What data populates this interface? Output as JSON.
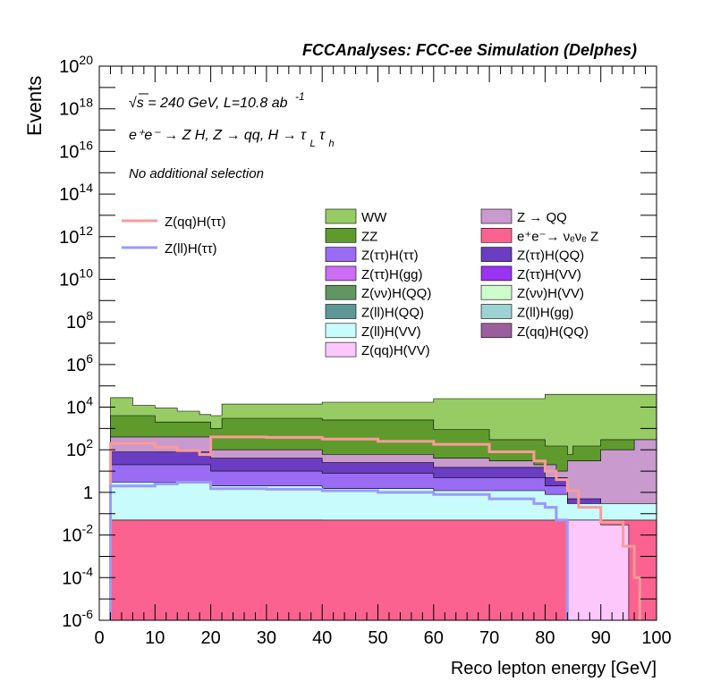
{
  "header": {
    "title": "FCCAnalyses: FCC-ee Simulation (Delphes)"
  },
  "annotations": {
    "energy_lumi": "√s = 240 GeV, L=10.8 ab",
    "energy_lumi_exp": "-1",
    "process": "e⁺e⁻ → Z H, Z → qq, H → τ",
    "process_sub1": "L",
    "process_tau2": "τ",
    "process_sub2": "h",
    "selection": "No additional selection"
  },
  "chart_data": {
    "type": "area",
    "title": "",
    "xlabel": "Reco lepton energy [GeV]",
    "ylabel": "Events",
    "xlim": [
      0,
      100
    ],
    "ylim": [
      1e-06,
      1e+20
    ],
    "log_y": true,
    "x_ticks": [
      "0",
      "10",
      "20",
      "30",
      "40",
      "50",
      "60",
      "70",
      "80",
      "90",
      "100"
    ],
    "y_ticks": [
      {
        "value": 1e-06,
        "base": "10",
        "exp": "-6"
      },
      {
        "value": 0.0001,
        "base": "10",
        "exp": "-4"
      },
      {
        "value": 0.01,
        "base": "10",
        "exp": "-2"
      },
      {
        "value": 1,
        "base": "1",
        "exp": ""
      },
      {
        "value": 100.0,
        "base": "10",
        "exp": "2"
      },
      {
        "value": 10000.0,
        "base": "10",
        "exp": "4"
      },
      {
        "value": 1000000.0,
        "base": "10",
        "exp": "6"
      },
      {
        "value": 100000000.0,
        "base": "10",
        "exp": "8"
      },
      {
        "value": 10000000000.0,
        "base": "10",
        "exp": "10"
      },
      {
        "value": 1000000000000.0,
        "base": "10",
        "exp": "12"
      },
      {
        "value": 100000000000000.0,
        "base": "10",
        "exp": "14"
      },
      {
        "value": 1e+16,
        "base": "10",
        "exp": "16"
      },
      {
        "value": 1e+18,
        "base": "10",
        "exp": "18"
      },
      {
        "value": 1e+20,
        "base": "10",
        "exp": "20"
      }
    ],
    "grid": false,
    "legend_placement": "top-right",
    "stack_totals": [
      {
        "x": 2,
        "y": 28000
      },
      {
        "x": 6,
        "y": 12000
      },
      {
        "x": 10,
        "y": 9000
      },
      {
        "x": 14,
        "y": 6500
      },
      {
        "x": 18,
        "y": 4500
      },
      {
        "x": 20,
        "y": 4000
      },
      {
        "x": 22,
        "y": 14000
      },
      {
        "x": 30,
        "y": 15000
      },
      {
        "x": 40,
        "y": 17000
      },
      {
        "x": 50,
        "y": 20000
      },
      {
        "x": 60,
        "y": 25000
      },
      {
        "x": 70,
        "y": 30000
      },
      {
        "x": 80,
        "y": 40000
      },
      {
        "x": 90,
        "y": 50000
      },
      {
        "x": 100,
        "y": 60000
      }
    ],
    "layers": [
      {
        "name": "WW",
        "color": "#97cc64",
        "points": [
          {
            "x": 2,
            "y": 28000
          },
          {
            "x": 6,
            "y": 12000
          },
          {
            "x": 10,
            "y": 9000
          },
          {
            "x": 14,
            "y": 6500
          },
          {
            "x": 18,
            "y": 4500
          },
          {
            "x": 20,
            "y": 4000
          },
          {
            "x": 22,
            "y": 14000
          },
          {
            "x": 40,
            "y": 17000
          },
          {
            "x": 60,
            "y": 25000
          },
          {
            "x": 80,
            "y": 40000
          },
          {
            "x": 100,
            "y": 60000
          }
        ]
      },
      {
        "name": "ZZ",
        "color": "#5f9a2d",
        "points": [
          {
            "x": 2,
            "y": 4000
          },
          {
            "x": 10,
            "y": 2000
          },
          {
            "x": 20,
            "y": 1000
          },
          {
            "x": 22,
            "y": 3000
          },
          {
            "x": 40,
            "y": 2500
          },
          {
            "x": 60,
            "y": 900
          },
          {
            "x": 70,
            "y": 300
          },
          {
            "x": 80,
            "y": 150
          },
          {
            "x": 84,
            "y": 60
          },
          {
            "x": 85,
            "y": 150
          },
          {
            "x": 90,
            "y": 300
          },
          {
            "x": 100,
            "y": 800
          }
        ]
      },
      {
        "name": "Z → QQ",
        "color": "#c89acd",
        "points": [
          {
            "x": 2,
            "y": 400
          },
          {
            "x": 20,
            "y": 100
          },
          {
            "x": 40,
            "y": 60
          },
          {
            "x": 60,
            "y": 40
          },
          {
            "x": 70,
            "y": 30
          },
          {
            "x": 78,
            "y": 20
          },
          {
            "x": 82,
            "y": 10
          },
          {
            "x": 84,
            "y": 30
          },
          {
            "x": 90,
            "y": 100
          },
          {
            "x": 96,
            "y": 300
          },
          {
            "x": 100,
            "y": 800
          }
        ]
      },
      {
        "name": "Z(ττ)H(QQ)",
        "color": "#6a3dc2",
        "points": [
          {
            "x": 2,
            "y": 80
          },
          {
            "x": 20,
            "y": 40
          },
          {
            "x": 40,
            "y": 25
          },
          {
            "x": 60,
            "y": 15
          },
          {
            "x": 80,
            "y": 5
          },
          {
            "x": 84,
            "y": 0.5
          },
          {
            "x": 90,
            "y": 0.01
          },
          {
            "x": 100,
            "y": 1e-06
          }
        ]
      },
      {
        "name": "Z(ττ)H(ττ)",
        "color": "#9a6cf4",
        "points": [
          {
            "x": 2,
            "y": 20
          },
          {
            "x": 20,
            "y": 10
          },
          {
            "x": 40,
            "y": 8
          },
          {
            "x": 60,
            "y": 5
          },
          {
            "x": 80,
            "y": 2
          },
          {
            "x": 84,
            "y": 0.1
          },
          {
            "x": 100,
            "y": 1e-06
          }
        ]
      },
      {
        "name": "Z(ll)H(gg)",
        "color": "#9dd2d2",
        "points": [
          {
            "x": 2,
            "y": 0.8
          },
          {
            "x": 20,
            "y": 0.5
          },
          {
            "x": 40,
            "y": 0.4
          },
          {
            "x": 60,
            "y": 0.3
          },
          {
            "x": 80,
            "y": 0.15
          },
          {
            "x": 84,
            "y": 0.05
          },
          {
            "x": 100,
            "y": 1e-06
          }
        ]
      },
      {
        "name": "Z(ll)H(VV)",
        "color": "#c8fcfc",
        "points": [
          {
            "x": 2,
            "y": 3
          },
          {
            "x": 20,
            "y": 2
          },
          {
            "x": 40,
            "y": 1.5
          },
          {
            "x": 60,
            "y": 1.2
          },
          {
            "x": 80,
            "y": 0.8
          },
          {
            "x": 84,
            "y": 0.3
          },
          {
            "x": 100,
            "y": 1e-06
          }
        ]
      },
      {
        "name": "Z(νν)H(QQ)",
        "color": "#619561",
        "points": [
          {
            "x": 2,
            "y": 0.05
          },
          {
            "x": 20,
            "y": 0.05
          },
          {
            "x": 40,
            "y": 0.01
          },
          {
            "x": 60,
            "y": 0.001
          },
          {
            "x": 100,
            "y": 1e-06
          }
        ]
      },
      {
        "name": "e⁺e⁻→ νₑνₑ Z",
        "color": "#fc628f",
        "points": [
          {
            "x": 2,
            "y": 0.05
          },
          {
            "x": 6,
            "y": 0.05
          },
          {
            "x": 20,
            "y": 0.05
          },
          {
            "x": 26,
            "y": 0.05
          },
          {
            "x": 100,
            "y": 1e-06
          }
        ]
      },
      {
        "name": "Z(qq)H(VV)",
        "color": "#fcc8fc",
        "points": [
          {
            "x": 84,
            "y": 0.05
          },
          {
            "x": 90,
            "y": 0.03
          },
          {
            "x": 95,
            "y": 0.01
          }
        ]
      }
    ],
    "series": [
      {
        "name": "Z(qq)H(ττ)",
        "color": "#fc9a9a",
        "points": [
          {
            "x": 2,
            "y": 1
          },
          {
            "x": 2,
            "y": 200
          },
          {
            "x": 6,
            "y": 200
          },
          {
            "x": 10,
            "y": 130
          },
          {
            "x": 14,
            "y": 90
          },
          {
            "x": 18,
            "y": 60
          },
          {
            "x": 20,
            "y": 50
          },
          {
            "x": 20,
            "y": 400
          },
          {
            "x": 30,
            "y": 380
          },
          {
            "x": 40,
            "y": 320
          },
          {
            "x": 50,
            "y": 250
          },
          {
            "x": 60,
            "y": 180
          },
          {
            "x": 70,
            "y": 80
          },
          {
            "x": 78,
            "y": 30
          },
          {
            "x": 80,
            "y": 10
          },
          {
            "x": 82,
            "y": 4
          },
          {
            "x": 84,
            "y": 1.2
          },
          {
            "x": 86,
            "y": 0.2
          },
          {
            "x": 90,
            "y": 0.04
          },
          {
            "x": 94,
            "y": 0.003
          },
          {
            "x": 96,
            "y": 0.0001
          },
          {
            "x": 97,
            "y": 1e-06
          }
        ]
      },
      {
        "name": "Z(ll)H(ττ)",
        "color": "#9a9afc",
        "points": [
          {
            "x": 2,
            "y": 1e-06
          },
          {
            "x": 2,
            "y": 2
          },
          {
            "x": 6,
            "y": 2
          },
          {
            "x": 10,
            "y": 2.5
          },
          {
            "x": 14,
            "y": 3
          },
          {
            "x": 18,
            "y": 3
          },
          {
            "x": 20,
            "y": 3
          },
          {
            "x": 20,
            "y": 1.5
          },
          {
            "x": 30,
            "y": 1.4
          },
          {
            "x": 40,
            "y": 1.2
          },
          {
            "x": 50,
            "y": 1
          },
          {
            "x": 60,
            "y": 0.8
          },
          {
            "x": 70,
            "y": 0.5
          },
          {
            "x": 78,
            "y": 0.3
          },
          {
            "x": 80,
            "y": 0.2
          },
          {
            "x": 82,
            "y": 0.05
          },
          {
            "x": 84,
            "y": 0.02
          },
          {
            "x": 84,
            "y": 1e-06
          }
        ]
      }
    ],
    "legend": {
      "lines": [
        {
          "label": "Z(qq)H(ττ)",
          "color": "#fc9a9a"
        },
        {
          "label": "Z(ll)H(ττ)",
          "color": "#9a9afc"
        }
      ],
      "col1": [
        {
          "label": "WW",
          "color": "#97cc64"
        },
        {
          "label": "ZZ",
          "color": "#5f9a2d"
        },
        {
          "label": "Z(ττ)H(ττ)",
          "color": "#9a6cf4"
        },
        {
          "label": "Z(ττ)H(gg)",
          "color": "#cd6cf4"
        },
        {
          "label": "Z(νν)H(QQ)",
          "color": "#619561"
        },
        {
          "label": "Z(ll)H(QQ)",
          "color": "#5f9797"
        },
        {
          "label": "Z(ll)H(VV)",
          "color": "#c8fcfc"
        },
        {
          "label": "Z(qq)H(VV)",
          "color": "#fcc8fc"
        }
      ],
      "col2": [
        {
          "label": "Z → QQ",
          "color": "#c89acd"
        },
        {
          "label": "e⁺e⁻→ νₑνₑ Z",
          "color": "#fc628f"
        },
        {
          "label": "Z(ττ)H(QQ)",
          "color": "#6a3dc2"
        },
        {
          "label": "Z(ττ)H(VV)",
          "color": "#9a33f4"
        },
        {
          "label": "Z(νν)H(VV)",
          "color": "#cdfccd"
        },
        {
          "label": "Z(ll)H(gg)",
          "color": "#9dd2d2"
        },
        {
          "label": "Z(qq)H(QQ)",
          "color": "#9a5f9a"
        }
      ]
    }
  }
}
